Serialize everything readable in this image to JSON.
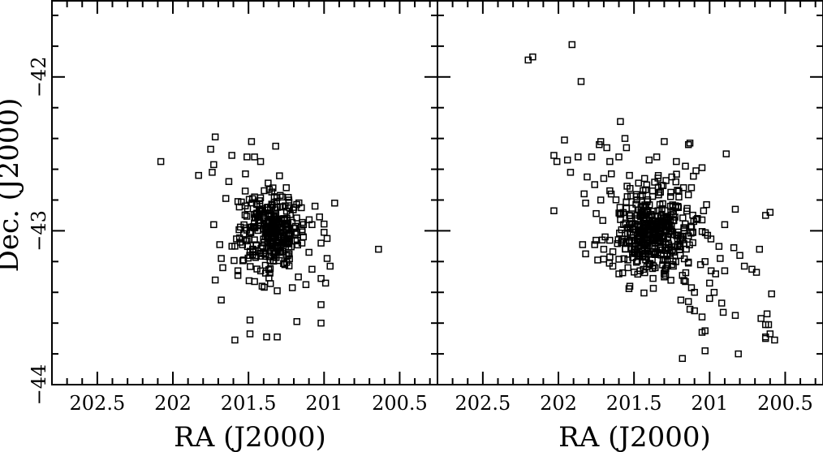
{
  "chart_data": [
    {
      "type": "scatter",
      "marker": "open-square",
      "xlabel": "RA (J2000)",
      "ylabel": "Dec. (J2000)",
      "xlim": [
        202.8,
        200.25
      ],
      "ylim": [
        -44,
        -41.5
      ],
      "xticks": [
        "202.5",
        "202",
        "201.5",
        "201",
        "200.5"
      ],
      "xtick_values": [
        202.5,
        202.0,
        201.5,
        201.0,
        200.5
      ],
      "yticks": [
        "-42",
        "-43",
        "-44"
      ],
      "ytick_values": [
        -42,
        -43,
        -44
      ],
      "grid": false,
      "legend": "none",
      "cluster": {
        "description_free": true,
        "center": [
          201.35,
          -43.0
        ],
        "n": 300,
        "spread_ra": 0.1,
        "spread_dec": 0.12
      },
      "points": [
        [
          202.08,
          -42.55
        ],
        [
          201.83,
          -42.64
        ],
        [
          201.75,
          -42.47
        ],
        [
          201.73,
          -42.57
        ],
        [
          201.72,
          -42.39
        ],
        [
          201.74,
          -42.62
        ],
        [
          201.61,
          -42.51
        ],
        [
          201.63,
          -42.68
        ],
        [
          201.48,
          -42.42
        ],
        [
          201.51,
          -42.52
        ],
        [
          201.46,
          -42.52
        ],
        [
          201.52,
          -42.63
        ],
        [
          201.42,
          -42.55
        ],
        [
          201.32,
          -42.45
        ],
        [
          201.37,
          -42.69
        ],
        [
          201.25,
          -42.72
        ],
        [
          201.29,
          -42.77
        ],
        [
          201.65,
          -42.79
        ],
        [
          201.57,
          -42.81
        ],
        [
          201.46,
          -42.78
        ],
        [
          201.15,
          -42.85
        ],
        [
          201.06,
          -42.84
        ],
        [
          200.93,
          -42.82
        ],
        [
          201.03,
          -42.91
        ],
        [
          201.08,
          -42.96
        ],
        [
          200.64,
          -43.12
        ],
        [
          201.73,
          -42.96
        ],
        [
          201.69,
          -43.09
        ],
        [
          201.68,
          -43.18
        ],
        [
          201.67,
          -43.24
        ],
        [
          201.72,
          -43.32
        ],
        [
          201.68,
          -43.45
        ],
        [
          201.57,
          -43.29
        ],
        [
          201.46,
          -43.33
        ],
        [
          201.41,
          -43.36
        ],
        [
          201.31,
          -43.39
        ],
        [
          201.21,
          -43.37
        ],
        [
          201.17,
          -43.3
        ],
        [
          201.12,
          -43.35
        ],
        [
          201.02,
          -43.31
        ],
        [
          200.99,
          -43.34
        ],
        [
          200.96,
          -43.23
        ],
        [
          200.98,
          -43.18
        ],
        [
          200.98,
          -43.05
        ],
        [
          201.0,
          -43.01
        ],
        [
          201.02,
          -43.08
        ],
        [
          201.1,
          -43.14
        ],
        [
          201.08,
          -43.25
        ],
        [
          201.59,
          -43.71
        ],
        [
          201.49,
          -43.67
        ],
        [
          201.38,
          -43.69
        ],
        [
          201.31,
          -43.69
        ],
        [
          201.49,
          -43.58
        ],
        [
          201.18,
          -43.59
        ],
        [
          201.02,
          -43.48
        ],
        [
          201.02,
          -43.6
        ],
        [
          201.57,
          -43.26
        ],
        [
          201.26,
          -43.22
        ],
        [
          201.39,
          -43.15
        ],
        [
          201.59,
          -43.1
        ]
      ]
    },
    {
      "type": "scatter",
      "marker": "open-square",
      "xlabel": "RA (J2000)",
      "ylabel": "",
      "xlim": [
        202.8,
        200.25
      ],
      "ylim": [
        -44,
        -41.5
      ],
      "xticks": [
        "202.5",
        "202",
        "201.5",
        "201",
        "200.5"
      ],
      "xtick_values": [
        202.5,
        202.0,
        201.5,
        201.0,
        200.5
      ],
      "yticks": [
        "-42",
        "-43",
        "-44"
      ],
      "ytick_values": [
        -42,
        -43,
        -44
      ],
      "grid": false,
      "legend": "none",
      "cluster": {
        "center": [
          201.38,
          -43.0
        ],
        "n": 420,
        "spread_ra": 0.14,
        "spread_dec": 0.14
      },
      "points": [
        [
          201.91,
          -41.79
        ],
        [
          202.2,
          -41.89
        ],
        [
          202.17,
          -41.87
        ],
        [
          201.85,
          -42.03
        ],
        [
          201.59,
          -42.29
        ],
        [
          201.96,
          -42.41
        ],
        [
          201.72,
          -42.42
        ],
        [
          201.73,
          -42.44
        ],
        [
          201.68,
          -42.46
        ],
        [
          201.55,
          -42.46
        ],
        [
          201.56,
          -42.4
        ],
        [
          201.3,
          -42.42
        ],
        [
          201.14,
          -42.44
        ],
        [
          201.13,
          -42.43
        ],
        [
          200.89,
          -42.5
        ],
        [
          202.03,
          -42.51
        ],
        [
          202.01,
          -42.55
        ],
        [
          201.94,
          -42.54
        ],
        [
          201.87,
          -42.52
        ],
        [
          201.78,
          -42.52
        ],
        [
          201.66,
          -42.55
        ],
        [
          201.6,
          -42.52
        ],
        [
          201.4,
          -42.54
        ],
        [
          201.35,
          -42.52
        ],
        [
          201.22,
          -42.55
        ],
        [
          201.16,
          -42.58
        ],
        [
          201.09,
          -42.61
        ],
        [
          201.05,
          -42.59
        ],
        [
          201.92,
          -42.62
        ],
        [
          201.81,
          -42.65
        ],
        [
          201.76,
          -42.7
        ],
        [
          201.7,
          -42.66
        ],
        [
          201.65,
          -42.63
        ],
        [
          201.53,
          -42.64
        ],
        [
          201.47,
          -42.69
        ],
        [
          201.43,
          -42.66
        ],
        [
          201.25,
          -42.65
        ],
        [
          201.12,
          -42.72
        ],
        [
          201.83,
          -42.76
        ],
        [
          201.82,
          -42.82
        ],
        [
          201.72,
          -42.8
        ],
        [
          201.66,
          -42.74
        ],
        [
          200.83,
          -42.86
        ],
        [
          200.63,
          -42.9
        ],
        [
          200.6,
          -42.88
        ],
        [
          202.03,
          -42.87
        ],
        [
          201.02,
          -42.83
        ],
        [
          201.04,
          -42.87
        ],
        [
          201.08,
          -42.92
        ],
        [
          200.9,
          -42.96
        ],
        [
          201.84,
          -43.09
        ],
        [
          201.82,
          -43.15
        ],
        [
          201.76,
          -43.09
        ],
        [
          201.71,
          -43.06
        ],
        [
          201.7,
          -43.12
        ],
        [
          201.74,
          -43.19
        ],
        [
          201.66,
          -43.17
        ],
        [
          201.64,
          -43.23
        ],
        [
          201.6,
          -43.28
        ],
        [
          201.54,
          -43.24
        ],
        [
          201.46,
          -43.26
        ],
        [
          201.3,
          -43.3
        ],
        [
          201.24,
          -43.23
        ],
        [
          201.14,
          -43.21
        ],
        [
          201.06,
          -43.22
        ],
        [
          200.93,
          -43.18
        ],
        [
          200.84,
          -43.11
        ],
        [
          200.8,
          -43.16
        ],
        [
          200.77,
          -43.23
        ],
        [
          200.72,
          -43.25
        ],
        [
          200.67,
          -43.12
        ],
        [
          200.69,
          -43.27
        ],
        [
          200.59,
          -43.41
        ],
        [
          201.03,
          -43.2
        ],
        [
          200.99,
          -43.26
        ],
        [
          200.96,
          -43.28
        ],
        [
          201.0,
          -43.34
        ],
        [
          200.97,
          -43.4
        ],
        [
          200.92,
          -43.47
        ],
        [
          200.91,
          -43.53
        ],
        [
          200.9,
          -43.26
        ],
        [
          201.0,
          -43.44
        ],
        [
          201.1,
          -43.4
        ],
        [
          201.14,
          -43.46
        ],
        [
          201.13,
          -43.51
        ],
        [
          201.1,
          -43.52
        ],
        [
          201.19,
          -43.45
        ],
        [
          201.12,
          -43.37
        ],
        [
          201.16,
          -43.33
        ],
        [
          201.18,
          -43.29
        ],
        [
          200.83,
          -43.55
        ],
        [
          201.05,
          -43.56
        ],
        [
          201.03,
          -43.65
        ],
        [
          201.05,
          -43.66
        ],
        [
          200.62,
          -43.54
        ],
        [
          200.66,
          -43.57
        ],
        [
          200.61,
          -43.61
        ],
        [
          200.63,
          -43.61
        ],
        [
          200.6,
          -43.67
        ],
        [
          200.57,
          -43.71
        ],
        [
          200.63,
          -43.69
        ],
        [
          200.63,
          -43.7
        ],
        [
          201.03,
          -43.78
        ],
        [
          200.81,
          -43.8
        ],
        [
          201.18,
          -43.83
        ],
        [
          201.47,
          -43.15
        ],
        [
          201.36,
          -43.24
        ],
        [
          201.43,
          -43.05
        ],
        [
          201.3,
          -42.92
        ],
        [
          201.53,
          -42.9
        ]
      ]
    }
  ]
}
